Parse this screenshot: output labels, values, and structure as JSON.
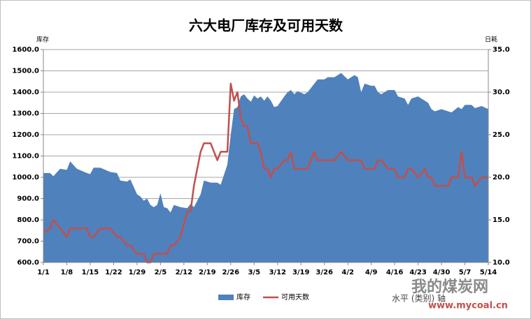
{
  "chart_data": {
    "type": "area-line",
    "title": "六大电厂库存及可用天数",
    "y_label": "库存",
    "y2_label": "日耗",
    "x": [
      1,
      3,
      4,
      6,
      8,
      9,
      11,
      14,
      15,
      16,
      18,
      21,
      23,
      24,
      26,
      27,
      29,
      30,
      31,
      32,
      33,
      34,
      35,
      36,
      37,
      38,
      39,
      40,
      42,
      44,
      45,
      46,
      48,
      49,
      51,
      53,
      54,
      56,
      57,
      58,
      59,
      60,
      61,
      62,
      63,
      64,
      65,
      66,
      67,
      68,
      69,
      70,
      71,
      73,
      74,
      75,
      76,
      77,
      79,
      80,
      82,
      83,
      85,
      86,
      88,
      90,
      92,
      93,
      94,
      95,
      96,
      97,
      99,
      100,
      101,
      102,
      104,
      106,
      107,
      109,
      110,
      111,
      113,
      115,
      116,
      117,
      118,
      120,
      122,
      123,
      125,
      126,
      127,
      129,
      130,
      132,
      134
    ],
    "xlim": [
      1,
      134
    ],
    "xticks": [
      {
        "value": 1,
        "label": "1/1"
      },
      {
        "value": 8,
        "label": "1/8"
      },
      {
        "value": 15,
        "label": "1/15"
      },
      {
        "value": 22,
        "label": "1/22"
      },
      {
        "value": 29,
        "label": "1/29"
      },
      {
        "value": 36,
        "label": "2/5"
      },
      {
        "value": 43,
        "label": "2/12"
      },
      {
        "value": 50,
        "label": "2/19"
      },
      {
        "value": 57,
        "label": "2/26"
      },
      {
        "value": 64,
        "label": "3/5"
      },
      {
        "value": 71,
        "label": "3/12"
      },
      {
        "value": 78,
        "label": "3/19"
      },
      {
        "value": 85,
        "label": "3/26"
      },
      {
        "value": 92,
        "label": "4/2"
      },
      {
        "value": 99,
        "label": "4/9"
      },
      {
        "value": 106,
        "label": "4/16"
      },
      {
        "value": 113,
        "label": "4/23"
      },
      {
        "value": 120,
        "label": "4/30"
      },
      {
        "value": 127,
        "label": "5/7"
      },
      {
        "value": 134,
        "label": "5/14"
      }
    ],
    "ylim": [
      600,
      1600
    ],
    "yticks": [
      {
        "value": 600,
        "label": "600.0"
      },
      {
        "value": 700,
        "label": "700.0"
      },
      {
        "value": 800,
        "label": "800.0"
      },
      {
        "value": 900,
        "label": "900.0"
      },
      {
        "value": 1000,
        "label": "1000.0"
      },
      {
        "value": 1100,
        "label": "1100.0"
      },
      {
        "value": 1200,
        "label": "1200.0"
      },
      {
        "value": 1300,
        "label": "1300.0"
      },
      {
        "value": 1400,
        "label": "1400.0"
      },
      {
        "value": 1500,
        "label": "1500.0"
      },
      {
        "value": 1600,
        "label": "1600.0"
      }
    ],
    "y2lim": [
      10,
      35
    ],
    "y2ticks": [
      {
        "value": 10,
        "label": "10.0"
      },
      {
        "value": 15,
        "label": "15.0"
      },
      {
        "value": 20,
        "label": "20.0"
      },
      {
        "value": 25,
        "label": "25.0"
      },
      {
        "value": 30,
        "label": "30.0"
      },
      {
        "value": 35,
        "label": "35.0"
      }
    ],
    "grid": true,
    "series": [
      {
        "name": "库存",
        "type": "area",
        "color": "#4f81bd",
        "values": [
          1020,
          1020,
          1005,
          1040,
          1035,
          1075,
          1040,
          1020,
          1015,
          1045,
          1045,
          1025,
          1020,
          985,
          980,
          990,
          920,
          910,
          890,
          900,
          870,
          860,
          870,
          925,
          860,
          855,
          835,
          870,
          860,
          855,
          875,
          860,
          920,
          985,
          975,
          975,
          965,
          1060,
          1200,
          1320,
          1330,
          1380,
          1390,
          1370,
          1355,
          1385,
          1370,
          1380,
          1360,
          1380,
          1360,
          1330,
          1335,
          1380,
          1400,
          1410,
          1390,
          1405,
          1390,
          1400,
          1440,
          1460,
          1460,
          1470,
          1470,
          1490,
          1460,
          1470,
          1480,
          1470,
          1400,
          1440,
          1430,
          1430,
          1400,
          1390,
          1410,
          1410,
          1380,
          1370,
          1340,
          1370,
          1380,
          1360,
          1350,
          1320,
          1310,
          1320,
          1310,
          1305,
          1330,
          1320,
          1340,
          1340,
          1325,
          1335,
          1320
        ]
      },
      {
        "name": "可用天数",
        "type": "line",
        "axis": "y2",
        "color": "#c0504d",
        "values": [
          13.5,
          14,
          15,
          14,
          13,
          14,
          14,
          14,
          13,
          13,
          14,
          14,
          13,
          13,
          12,
          12,
          11,
          11,
          11,
          10,
          10,
          11,
          11,
          11,
          11,
          11,
          12,
          12,
          13,
          16,
          16,
          19,
          23,
          24,
          24,
          22,
          23,
          23,
          31,
          29,
          30,
          27,
          26,
          26,
          24,
          24,
          24,
          23,
          21,
          21,
          20,
          21,
          21,
          22,
          22,
          23,
          21,
          21,
          21,
          21,
          23,
          22,
          22,
          22,
          22,
          23,
          22,
          22,
          22,
          22,
          22,
          21,
          21,
          21,
          22,
          22,
          21,
          21,
          20,
          20,
          21,
          21,
          20,
          21,
          20,
          20,
          19,
          19,
          19,
          20,
          20,
          23,
          20,
          20,
          19,
          20,
          20
        ]
      }
    ],
    "watermark": [
      "我的煤炭网",
      "www.mycoal.cn"
    ],
    "x_label": "水平 (类别) 轴"
  }
}
